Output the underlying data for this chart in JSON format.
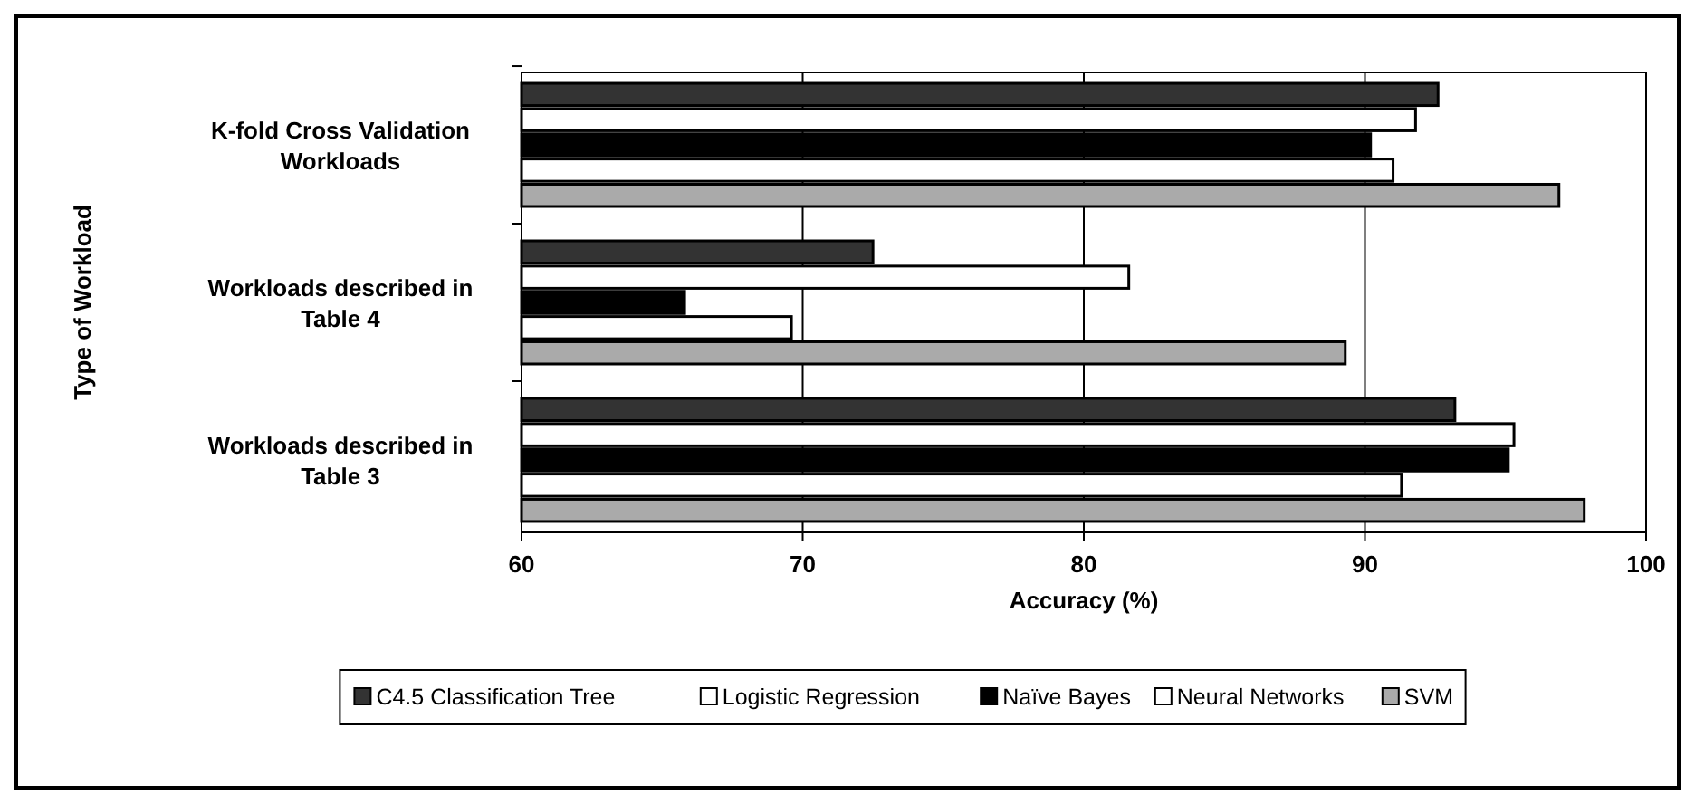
{
  "chart_data": {
    "type": "bar",
    "orientation": "horizontal",
    "xlabel": "Accuracy (%)",
    "ylabel": "Type of Workload",
    "categories": [
      "K-fold Cross Validation Workloads",
      "Workloads described in Table 4",
      "Workloads described in Table 3"
    ],
    "series": [
      {
        "name": "C4.5 Classification Tree",
        "color": "#333333",
        "values": [
          92.6,
          72.5,
          93.2
        ]
      },
      {
        "name": "Logistic Regression",
        "color": "#ffffff",
        "values": [
          91.8,
          81.6,
          95.3
        ]
      },
      {
        "name": "Naïve Bayes",
        "color": "#000000",
        "values": [
          90.2,
          65.8,
          95.1
        ]
      },
      {
        "name": "Neural Networks",
        "color": "#ffffff",
        "values": [
          91.0,
          69.6,
          91.3
        ]
      },
      {
        "name": "SVM",
        "color": "#aaaaaa",
        "values": [
          96.9,
          89.3,
          97.8
        ]
      }
    ],
    "xlim": [
      60,
      100
    ],
    "xticks": [
      60,
      70,
      80,
      90,
      100
    ],
    "grid": "x",
    "legend": "bottom"
  }
}
